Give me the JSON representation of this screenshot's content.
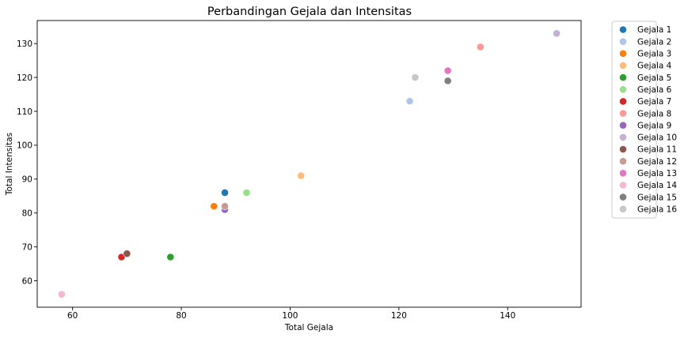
{
  "chart_data": {
    "type": "scatter",
    "title": "Perbandingan Gejala dan Intensitas",
    "xlabel": "Total Gejala",
    "ylabel": "Total Intensitas",
    "xlim": [
      53.5,
      153.5
    ],
    "ylim": [
      52.2,
      136.8
    ],
    "xticks": [
      60,
      80,
      100,
      120,
      140
    ],
    "yticks": [
      60,
      70,
      80,
      90,
      100,
      110,
      120,
      130
    ],
    "grid": false,
    "legend_position": "outside-right",
    "series": [
      {
        "name": "Gejala 1",
        "color": "#1f77b4",
        "x": 88,
        "y": 86
      },
      {
        "name": "Gejala 2",
        "color": "#aec7e8",
        "x": 122,
        "y": 113
      },
      {
        "name": "Gejala 3",
        "color": "#ff7f0e",
        "x": 86,
        "y": 82
      },
      {
        "name": "Gejala 4",
        "color": "#ffbb78",
        "x": 102,
        "y": 91
      },
      {
        "name": "Gejala 5",
        "color": "#2ca02c",
        "x": 78,
        "y": 67
      },
      {
        "name": "Gejala 6",
        "color": "#98df8a",
        "x": 92,
        "y": 86
      },
      {
        "name": "Gejala 7",
        "color": "#d62728",
        "x": 69,
        "y": 67
      },
      {
        "name": "Gejala 8",
        "color": "#ff9896",
        "x": 135,
        "y": 129
      },
      {
        "name": "Gejala 9",
        "color": "#9467bd",
        "x": 88,
        "y": 81
      },
      {
        "name": "Gejala 10",
        "color": "#c5b0d5",
        "x": 149,
        "y": 133
      },
      {
        "name": "Gejala 11",
        "color": "#8c564b",
        "x": 70,
        "y": 68
      },
      {
        "name": "Gejala 12",
        "color": "#c49c94",
        "x": 88,
        "y": 82
      },
      {
        "name": "Gejala 13",
        "color": "#e377c2",
        "x": 129,
        "y": 122
      },
      {
        "name": "Gejala 14",
        "color": "#f7b6d2",
        "x": 58,
        "y": 56
      },
      {
        "name": "Gejala 15",
        "color": "#7f7f7f",
        "x": 129,
        "y": 119
      },
      {
        "name": "Gejala 16",
        "color": "#c7c7c7",
        "x": 123,
        "y": 120
      }
    ]
  }
}
